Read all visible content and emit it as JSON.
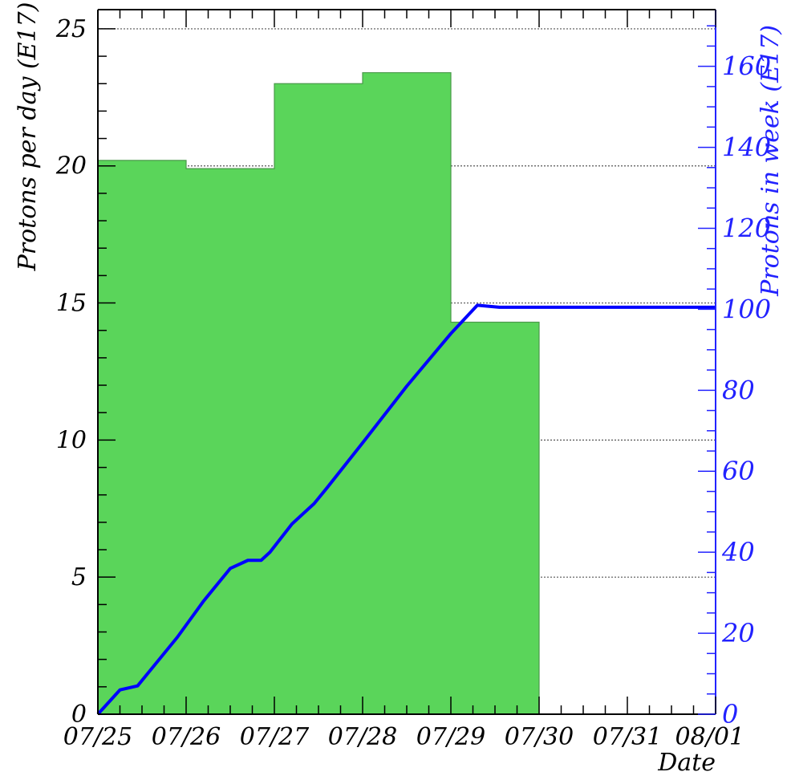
{
  "chart_data": {
    "type": "bar",
    "x_tick_labels": [
      "07/25",
      "07/26",
      "07/27",
      "07/28",
      "07/29",
      "07/30",
      "07/31",
      "08/01"
    ],
    "xlabel": "Date",
    "ylabel_left": "Protons per day (E17)",
    "ylabel_right": "Protons in week (E17)",
    "ylim_left": [
      0,
      25.7
    ],
    "ylim_right": [
      0,
      174
    ],
    "y_ticks_left": [
      0,
      5,
      10,
      15,
      20,
      25
    ],
    "y_ticks_right": [
      0,
      20,
      40,
      60,
      80,
      100,
      120,
      140,
      160
    ],
    "y_tick_labels_left": [
      "0",
      "5",
      "10",
      "15",
      "20",
      "25"
    ],
    "y_tick_labels_right": [
      "0",
      "20",
      "40",
      "60",
      "80",
      "100",
      "120",
      "140",
      "160"
    ],
    "grid": true,
    "bar_series": {
      "categories": [
        "07/25",
        "07/26",
        "07/27",
        "07/28",
        "07/29",
        "07/30",
        "07/31"
      ],
      "values": [
        20.2,
        19.9,
        23.0,
        23.4,
        14.3,
        0,
        0
      ],
      "color": "#5ad55a"
    },
    "line_series": {
      "x": [
        0,
        0.25,
        0.35,
        0.45,
        0.6,
        0.9,
        1.2,
        1.5,
        1.7,
        1.78,
        1.85,
        1.95,
        2.2,
        2.45,
        2.6,
        3.0,
        3.5,
        4.0,
        4.3,
        4.55,
        4.6,
        5.0,
        7.0
      ],
      "y": [
        0,
        6,
        6.5,
        7,
        11,
        19,
        28,
        36,
        38,
        38,
        38,
        40,
        47,
        52,
        56,
        67,
        81,
        94,
        101,
        100.5,
        100.5,
        100.5,
        100.5
      ],
      "color": "#0000ff"
    },
    "colors": {
      "bar_fill": "#5ad55a",
      "bar_edge": "#4a9a4a",
      "line": "#0000ff",
      "right_axis": "#2222ff",
      "grid": "#555555"
    }
  }
}
